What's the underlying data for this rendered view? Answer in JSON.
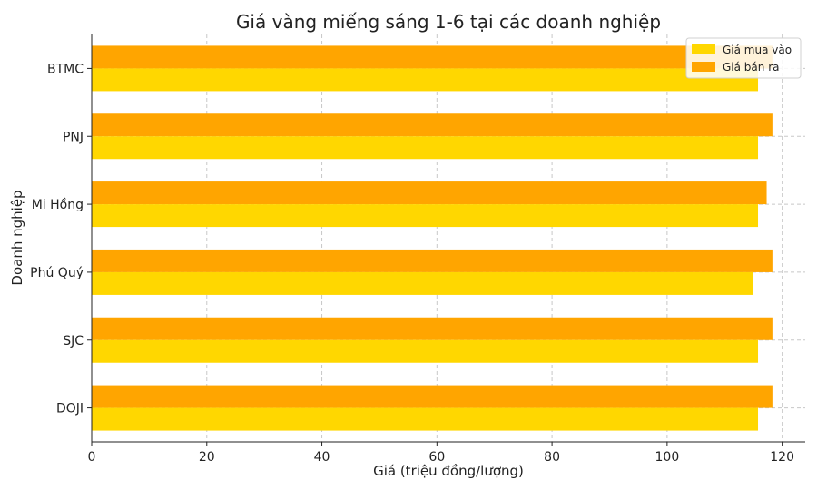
{
  "chart_data": {
    "type": "bar",
    "orientation": "horizontal",
    "title": "Giá vàng miếng sáng 1-6 tại các doanh nghiệp",
    "xlabel": "Giá (triệu đồng/lượng)",
    "ylabel": "Doanh nghiệp",
    "categories": [
      "DOJI",
      "SJC",
      "Phú Quý",
      "Mi Hồng",
      "PNJ",
      "BTMC"
    ],
    "series": [
      {
        "name": "Giá mua vào",
        "color": "#FFD700",
        "values": [
          115.8,
          115.8,
          115.0,
          115.8,
          115.8,
          115.8
        ]
      },
      {
        "name": "Giá bán ra",
        "color": "#FFA500",
        "values": [
          118.3,
          118.3,
          118.3,
          117.3,
          118.3,
          118.3
        ]
      }
    ],
    "xlim": [
      0,
      124
    ],
    "xticks": [
      "0",
      "20",
      "40",
      "60",
      "80",
      "100",
      "120"
    ],
    "grid": true,
    "legend_position": "top-right"
  }
}
